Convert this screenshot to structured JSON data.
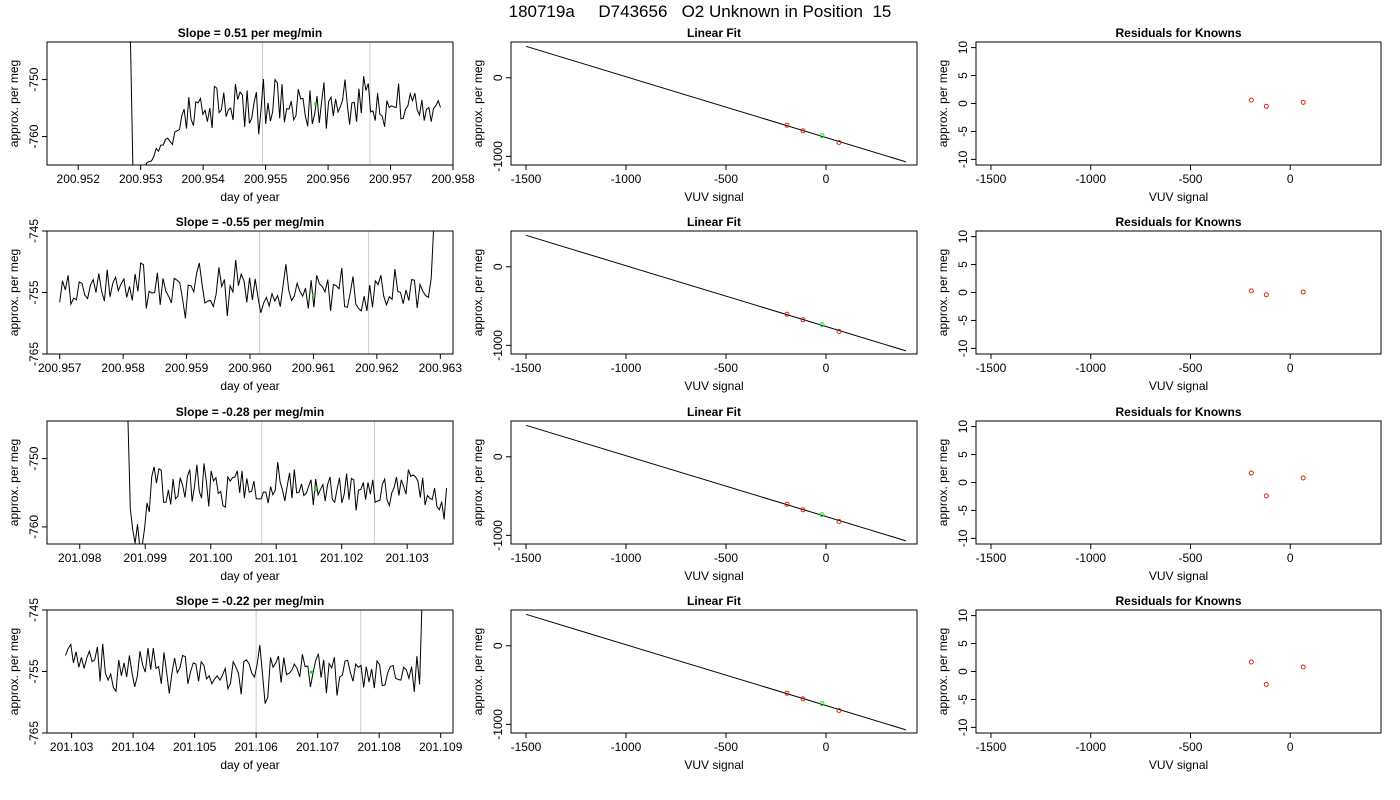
{
  "figure": {
    "title": "180719a     D743656   O2 Unknown in Position  15"
  },
  "chart_data": [
    {
      "panel": "timeseries-1",
      "type": "line",
      "title": "Slope =  0.51  per meg/min",
      "xlabel": "day of year",
      "ylabel": "approx. per meg",
      "xlim": [
        200.9515,
        200.958
      ],
      "ylim": [
        -765,
        -743.4
      ],
      "xticks": [
        200.952,
        200.953,
        200.954,
        200.955,
        200.956,
        200.957,
        200.958
      ],
      "xtick_labels": [
        "200.952",
        "200.953",
        "200.954",
        "200.955",
        "200.956",
        "200.957",
        "200.958"
      ],
      "yticks": [
        -750,
        -760
      ],
      "ytick_labels": [
        "-750",
        "-760"
      ],
      "vlines": [
        200.95495,
        200.95667
      ],
      "x_start": 200.9528,
      "x_end": 200.9578,
      "series_line": [
        -743.2,
        -743.6,
        -765.5,
        -766.2,
        -766.1,
        -766.2,
        -765.9,
        -765.8,
        -764.6,
        -764.4,
        -764.3,
        -763.5,
        -762.1,
        -762.6,
        -761.5,
        -761.5,
        -760.5,
        -760.3,
        -760.9,
        -761.4,
        -759.2,
        -759.0,
        -758.8,
        -756.3,
        -755.2,
        -758.6,
        -753.1,
        -757.0,
        -758.1,
        -753.9,
        -754.1,
        -753.3,
        -756.1,
        -755.4,
        -757.4,
        -755.0,
        -758.5,
        -751.2,
        -751.5,
        -755.8,
        -755.3,
        -752.3,
        -756.5,
        -755.3,
        -755.0,
        -757.1,
        -750.8,
        -753.5,
        -752.2,
        -752.7,
        -758.3,
        -751.9,
        -757.7,
        -756.8,
        -754.0,
        -752.2,
        -759.6,
        -755.3,
        -749.9,
        -757.8,
        -754.1,
        -757.3,
        -755.6,
        -750.0,
        -750.6,
        -756.8,
        -750.8,
        -757.5,
        -755.1,
        -755.2,
        -753.8,
        -757.1,
        -756.3,
        -751.7,
        -753.4,
        -753.3,
        -756.4,
        -758.2,
        -751.9,
        -757.8,
        -756.0,
        -752.9,
        -757.6,
        -753.9,
        -750.5,
        -758.6,
        -753.9,
        -753.1,
        -756.4,
        -753.4,
        -755.7,
        -754.8,
        -753.6,
        -750.0,
        -754.4,
        -757.9,
        -754.1,
        -754.0,
        -757.4,
        -751.6,
        -755.9,
        -749.4,
        -751.9,
        -750.7,
        -755.7,
        -755.5,
        -757.2,
        -752.4,
        -756.1,
        -756.4,
        -758.3,
        -753.7,
        -754.9,
        -754.6,
        -754.8,
        -754.9,
        -750.7,
        -756.9,
        -756.8,
        -755.2,
        -754.6,
        -752.5,
        -753.7,
        -752.4,
        -755.3,
        -756.2,
        -753.6,
        -757.2,
        -755.2,
        -754.9,
        -757.4,
        -755.1,
        -754.6,
        -753.7,
        -754.9
      ],
      "green_marker": {
        "x": 200.9558,
        "y": -754.3
      }
    },
    {
      "panel": "timeseries-2",
      "type": "line",
      "title": "Slope =  -0.55  per meg/min",
      "xlabel": "day of year",
      "ylabel": "approx. per meg",
      "xlim": [
        200.9568,
        200.9632
      ],
      "ylim": [
        -765,
        -745
      ],
      "xticks": [
        200.957,
        200.958,
        200.959,
        200.96,
        200.961,
        200.962,
        200.963
      ],
      "xtick_labels": [
        "200.957",
        "200.958",
        "200.959",
        "200.960",
        "200.961",
        "200.962",
        "200.963"
      ],
      "yticks": [
        -745,
        -755,
        -765
      ],
      "ytick_labels": [
        "-745",
        "-755",
        "-765"
      ],
      "vlines": [
        200.96015,
        200.96187
      ],
      "x_start": 200.957,
      "x_end": 200.9629,
      "series_line": [
        -756.6,
        -753.1,
        -754.6,
        -752.2,
        -756.9,
        -755.9,
        -756.2,
        -753.3,
        -753.5,
        -755.4,
        -756.0,
        -753.8,
        -752.9,
        -755.0,
        -751.9,
        -754.8,
        -756.4,
        -751.3,
        -755.7,
        -753.5,
        -752.5,
        -754.7,
        -753.6,
        -752.8,
        -755.8,
        -754.0,
        -756.3,
        -752.0,
        -754.8,
        -750.2,
        -750.5,
        -757.6,
        -754.8,
        -755.1,
        -755.0,
        -751.8,
        -757.0,
        -752.7,
        -754.8,
        -755.6,
        -756.7,
        -752.7,
        -753.0,
        -753.4,
        -756.1,
        -759.2,
        -753.8,
        -753.9,
        -754.9,
        -751.9,
        -750.2,
        -753.7,
        -756.7,
        -756.4,
        -756.3,
        -757.3,
        -755.3,
        -750.9,
        -754.0,
        -752.9,
        -758.8,
        -753.9,
        -754.9,
        -749.7,
        -753.9,
        -752.0,
        -753.1,
        -756.6,
        -752.6,
        -756.2,
        -752.8,
        -755.8,
        -758.3,
        -756.7,
        -755.8,
        -757.2,
        -755.2,
        -756.4,
        -755.5,
        -757.3,
        -753.8,
        -750.4,
        -754.6,
        -756.3,
        -755.6,
        -753.5,
        -754.8,
        -755.6,
        -754.3,
        -757.6,
        -753.0,
        -757.4,
        -752.2,
        -753.6,
        -754.0,
        -754.9,
        -752.9,
        -758.0,
        -753.7,
        -753.9,
        -754.4,
        -751.0,
        -757.3,
        -757.4,
        -755.1,
        -752.4,
        -756.9,
        -757.6,
        -758.0,
        -755.6,
        -758.0,
        -753.8,
        -757.4,
        -753.1,
        -753.7,
        -752.2,
        -755.6,
        -757.0,
        -755.7,
        -756.1,
        -751.2,
        -754.8,
        -755.0,
        -756.8,
        -754.6,
        -756.3,
        -752.9,
        -753.0,
        -757.5,
        -753.7,
        -754.8,
        -755.5,
        -755.8,
        -752.7,
        -743.3
      ],
      "green_marker": {
        "x": 200.961,
        "y": -755.4
      }
    },
    {
      "panel": "timeseries-3",
      "type": "line",
      "title": "Slope =  -0.28  per meg/min",
      "xlabel": "day of year",
      "ylabel": "approx. per meg",
      "xlim": [
        201.0975,
        201.1037
      ],
      "ylim": [
        -762.5,
        -744.5
      ],
      "xticks": [
        201.098,
        201.099,
        201.1,
        201.101,
        201.102,
        201.103
      ],
      "xtick_labels": [
        "201.098",
        "201.099",
        "201.100",
        "201.101",
        "201.102",
        "201.103"
      ],
      "yticks": [
        -750,
        -760
      ],
      "ytick_labels": [
        "-750",
        "-760"
      ],
      "vlines": [
        201.10078,
        201.1025
      ],
      "x_start": 201.0987,
      "x_end": 201.1036,
      "series_line": [
        -744.0,
        -744.6,
        -757.3,
        -760.4,
        -762.4,
        -759.6,
        -762.9,
        -762.7,
        -760.2,
        -756.5,
        -757.8,
        -752.7,
        -751.2,
        -753.6,
        -751.5,
        -751.7,
        -756.4,
        -756.4,
        -754.6,
        -756.7,
        -753.0,
        -755.9,
        -755.5,
        -752.8,
        -753.9,
        -755.7,
        -752.6,
        -751.6,
        -756.3,
        -754.1,
        -750.9,
        -754.8,
        -755.8,
        -750.7,
        -753.4,
        -757.0,
        -751.8,
        -753.3,
        -752.8,
        -755.1,
        -754.8,
        -756.9,
        -757.1,
        -752.7,
        -753.3,
        -752.8,
        -752.7,
        -751.8,
        -755.0,
        -751.8,
        -755.8,
        -752.9,
        -754.9,
        -754.8,
        -753.3,
        -755.9,
        -755.9,
        -755.9,
        -754.9,
        -754.9,
        -756.5,
        -754.1,
        -755.3,
        -754.6,
        -750.5,
        -753.4,
        -754.6,
        -756.2,
        -754.0,
        -752.1,
        -755.8,
        -751.6,
        -755.0,
        -754.9,
        -753.7,
        -755.4,
        -755.1,
        -754.1,
        -753.1,
        -756.8,
        -753.0,
        -755.3,
        -754.5,
        -753.8,
        -756.2,
        -753.8,
        -752.7,
        -756.0,
        -756.4,
        -754.5,
        -752.8,
        -756.5,
        -755.2,
        -752.2,
        -756.0,
        -752.9,
        -753.1,
        -757.6,
        -754.6,
        -754.5,
        -753.5,
        -756.0,
        -753.5,
        -755.2,
        -753.1,
        -756.4,
        -756.2,
        -756.1,
        -753.8,
        -753.0,
        -756.0,
        -756.9,
        -755.0,
        -754.2,
        -752.7,
        -755.4,
        -753.1,
        -754.1,
        -755.2,
        -751.6,
        -752.6,
        -752.4,
        -752.7,
        -753.3,
        -755.7,
        -752.8,
        -756.8,
        -755.4,
        -755.8,
        -756.0,
        -754.3,
        -757.0,
        -757.5,
        -756.3,
        -758.9,
        -754.3
      ],
      "green_marker": {
        "x": 201.1016,
        "y": -754.6
      }
    },
    {
      "panel": "timeseries-4",
      "type": "line",
      "title": "Slope =  -0.22  per meg/min",
      "xlabel": "day of year",
      "ylabel": "approx. per meg",
      "xlim": [
        201.1026,
        201.1092
      ],
      "ylim": [
        -765,
        -745
      ],
      "xticks": [
        201.103,
        201.104,
        201.105,
        201.106,
        201.107,
        201.108,
        201.109
      ],
      "xtick_labels": [
        "201.103",
        "201.104",
        "201.105",
        "201.106",
        "201.107",
        "201.108",
        "201.109"
      ],
      "yticks": [
        -745,
        -755,
        -765
      ],
      "ytick_labels": [
        "-745",
        "-755",
        "-765"
      ],
      "vlines": [
        201.106,
        201.1077
      ],
      "x_start": 201.1029,
      "x_end": 201.1087,
      "series_line": [
        -752.4,
        -751.3,
        -750.6,
        -753.6,
        -751.8,
        -754.3,
        -752.7,
        -754.5,
        -752.8,
        -751.7,
        -753.4,
        -753.1,
        -751.0,
        -756.6,
        -750.5,
        -755.3,
        -756.4,
        -755.4,
        -757.6,
        -758.2,
        -753.1,
        -755.7,
        -753.6,
        -755.9,
        -752.4,
        -755.2,
        -757.5,
        -755.8,
        -751.7,
        -754.0,
        -755.1,
        -751.2,
        -754.7,
        -751.2,
        -754.5,
        -754.2,
        -757.0,
        -751.9,
        -755.1,
        -758.6,
        -755.2,
        -752.8,
        -755.2,
        -754.4,
        -752.4,
        -752.6,
        -757.0,
        -755.0,
        -753.6,
        -753.8,
        -756.6,
        -753.4,
        -754.0,
        -756.2,
        -755.7,
        -757.0,
        -756.2,
        -755.7,
        -756.4,
        -755.6,
        -754.5,
        -757.8,
        -756.9,
        -753.4,
        -754.3,
        -755.3,
        -758.7,
        -753.4,
        -753.1,
        -753.8,
        -755.3,
        -755.9,
        -753.8,
        -750.7,
        -755.4,
        -760.2,
        -759.2,
        -752.7,
        -754.3,
        -753.6,
        -752.5,
        -756.8,
        -752.7,
        -755.5,
        -755.3,
        -754.8,
        -753.8,
        -754.5,
        -755.9,
        -752.2,
        -754.2,
        -754.1,
        -757.5,
        -755.2,
        -753.2,
        -752.1,
        -756.0,
        -753.1,
        -758.5,
        -753.7,
        -754.4,
        -752.7,
        -758.9,
        -755.9,
        -755.6,
        -753.3,
        -753.2,
        -755.2,
        -756.6,
        -753.8,
        -754.3,
        -754.0,
        -757.6,
        -754.2,
        -756.7,
        -754.6,
        -757.7,
        -753.3,
        -753.9,
        -757.3,
        -757.2,
        -755.3,
        -754.2,
        -754.0,
        -756.1,
        -756.3,
        -756.4,
        -754.3,
        -754.7,
        -756.1,
        -754.2,
        -758.3,
        -752.5,
        -757.1,
        -742.8
      ],
      "green_marker": {
        "x": 201.1069,
        "y": -755.1
      }
    },
    {
      "panel": "linear-fit",
      "type": "scatter",
      "title": "Linear Fit",
      "xlabel": "VUV signal",
      "ylabel": "approx. per meg",
      "xlim": [
        -1575,
        455
      ],
      "ylim": [
        -1110,
        455
      ],
      "xticks": [
        -1500,
        -1000,
        -500,
        0
      ],
      "xtick_labels": [
        "-1500",
        "-1000",
        "-500",
        "0"
      ],
      "yticks": [
        0,
        -1000
      ],
      "ytick_labels": [
        "0",
        "-1000"
      ],
      "fit_line": {
        "x": [
          -1500,
          400
        ],
        "y": [
          400,
          -1070
        ]
      },
      "knowns": {
        "x": [
          -195,
          -115,
          65
        ],
        "y": [
          -605,
          -675,
          -823
        ]
      },
      "unknown": {
        "x": [
          -20
        ],
        "y": [
          -737
        ]
      }
    },
    {
      "panel": "residuals",
      "type": "scatter",
      "title": "Residuals for Knowns",
      "xlabel": "VUV signal",
      "ylabel": "approx. per meg",
      "xlim": [
        -1575,
        455
      ],
      "ylim": [
        -11,
        11
      ],
      "xticks": [
        -1500,
        -1000,
        -500,
        0
      ],
      "xtick_labels": [
        "-1500",
        "-1000",
        "-500",
        "0"
      ],
      "yticks": [
        -10,
        -5,
        0,
        5,
        10
      ],
      "ytick_labels": [
        "-10",
        "-5",
        "0",
        "5",
        "10"
      ],
      "residual_rows": [
        {
          "x": [
            -195,
            -120,
            65
          ],
          "y": [
            0.6,
            -0.5,
            0.2
          ]
        },
        {
          "x": [
            -195,
            -120,
            65
          ],
          "y": [
            0.3,
            -0.4,
            0.1
          ]
        },
        {
          "x": [
            -195,
            -120,
            65
          ],
          "y": [
            1.7,
            -2.4,
            0.8
          ]
        },
        {
          "x": [
            -195,
            -120,
            65
          ],
          "y": [
            1.7,
            -2.3,
            0.8
          ]
        }
      ]
    }
  ],
  "colors": {
    "line": "#000000",
    "vline": "#cccccc",
    "known_point": "#cc2a1a",
    "unknown_point": "#22dd22",
    "axes": "#000000"
  }
}
